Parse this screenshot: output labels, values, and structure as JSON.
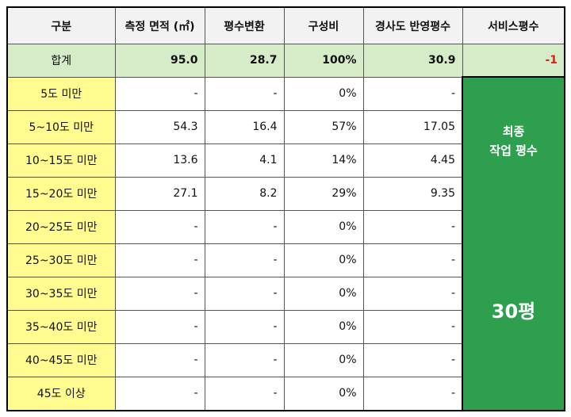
{
  "headers": [
    "구분",
    "측정 면적 (㎡)",
    "평수변환",
    "구성비",
    "경사도 반영평수",
    "서비스평수"
  ],
  "total": {
    "label": "합계",
    "area": "95.0",
    "pyeong": "28.7",
    "ratio": "100%",
    "slope_pyeong": "30.9",
    "service": "-1"
  },
  "rows": [
    {
      "label": "5도 미만",
      "area": "-",
      "pyeong": "-",
      "ratio": "0%",
      "slope_pyeong": "-"
    },
    {
      "label": "5~10도 미만",
      "area": "54.3",
      "pyeong": "16.4",
      "ratio": "57%",
      "slope_pyeong": "17.05"
    },
    {
      "label": "10~15도 미만",
      "area": "13.6",
      "pyeong": "4.1",
      "ratio": "14%",
      "slope_pyeong": "4.45"
    },
    {
      "label": "15~20도 미만",
      "area": "27.1",
      "pyeong": "8.2",
      "ratio": "29%",
      "slope_pyeong": "9.35"
    },
    {
      "label": "20~25도 미만",
      "area": "-",
      "pyeong": "-",
      "ratio": "0%",
      "slope_pyeong": "-"
    },
    {
      "label": "25~30도 미만",
      "area": "-",
      "pyeong": "-",
      "ratio": "0%",
      "slope_pyeong": "-"
    },
    {
      "label": "30~35도 미만",
      "area": "-",
      "pyeong": "-",
      "ratio": "0%",
      "slope_pyeong": "-"
    },
    {
      "label": "35~40도 미만",
      "area": "-",
      "pyeong": "-",
      "ratio": "0%",
      "slope_pyeong": "-"
    },
    {
      "label": "40~45도 미만",
      "area": "-",
      "pyeong": "-",
      "ratio": "0%",
      "slope_pyeong": "-"
    },
    {
      "label": "45도 이상",
      "area": "-",
      "pyeong": "-",
      "ratio": "0%",
      "slope_pyeong": "-"
    }
  ],
  "final": {
    "title_line1": "최종",
    "title_line2": "작업 평수",
    "value": "30평"
  },
  "colors": {
    "header_bg": "#f2f2f2",
    "total_bg": "#d6ecc8",
    "label_bg": "#fffb8f",
    "final_bg": "#2e9e4f",
    "negative": "#e02020"
  }
}
